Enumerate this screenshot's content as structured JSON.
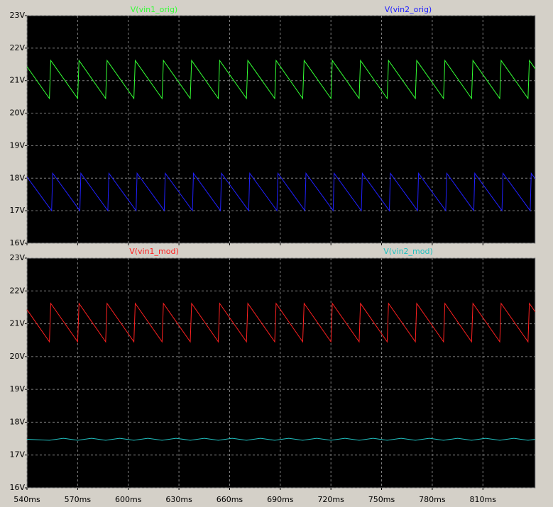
{
  "chart_data": [
    {
      "type": "line",
      "xlim": [
        540,
        841
      ],
      "ylim": [
        16,
        23
      ],
      "yticks": [
        {
          "value": 16,
          "label": "16V"
        },
        {
          "value": 17,
          "label": "17V"
        },
        {
          "value": 18,
          "label": "18V"
        },
        {
          "value": 19,
          "label": "19V"
        },
        {
          "value": 20,
          "label": "20V"
        },
        {
          "value": 21,
          "label": "21V"
        },
        {
          "value": 22,
          "label": "22V"
        },
        {
          "value": 23,
          "label": "23V"
        }
      ],
      "grid": true,
      "series": [
        {
          "name": "V(vin1_orig)",
          "color": "#33ff33",
          "x": [
            540,
            553.3,
            554.1,
            570.0,
            570.8,
            586.6,
            587.4,
            603.3,
            604.1,
            620.0,
            620.8,
            636.7,
            637.5,
            653.3,
            654.1,
            670.0,
            670.8,
            686.7,
            687.5,
            703.3,
            704.1,
            720.0,
            720.8,
            736.7,
            737.5,
            753.3,
            754.1,
            770.0,
            770.8,
            786.7,
            787.5,
            803.3,
            804.1,
            820.0,
            820.8,
            836.7,
            837.5,
            841
          ],
          "values": [
            21.43,
            20.45,
            21.62,
            20.45,
            21.62,
            20.45,
            21.62,
            20.45,
            21.62,
            20.45,
            21.62,
            20.45,
            21.62,
            20.45,
            21.62,
            20.45,
            21.62,
            20.45,
            21.62,
            20.45,
            21.62,
            20.45,
            21.62,
            20.45,
            21.62,
            20.45,
            21.62,
            20.45,
            21.62,
            20.45,
            21.62,
            20.45,
            21.62,
            20.45,
            21.62,
            20.45,
            21.62,
            21.36
          ]
        },
        {
          "name": "V(vin2_orig)",
          "color": "#2020ff",
          "x": [
            540,
            554.6,
            555.2,
            571.3,
            571.9,
            587.9,
            588.5,
            604.6,
            605.2,
            621.3,
            621.9,
            638.0,
            638.6,
            654.6,
            655.2,
            671.3,
            671.9,
            688.0,
            688.6,
            704.6,
            705.2,
            721.3,
            721.9,
            738.0,
            738.6,
            754.6,
            755.2,
            771.3,
            771.9,
            788.0,
            788.6,
            804.6,
            805.2,
            821.3,
            821.9,
            838.0,
            838.6,
            841
          ],
          "values": [
            18.04,
            17.0,
            18.15,
            17.0,
            18.15,
            17.0,
            18.15,
            17.0,
            18.15,
            17.0,
            18.15,
            17.0,
            18.15,
            17.0,
            18.15,
            17.0,
            18.15,
            17.0,
            18.15,
            17.0,
            18.15,
            17.0,
            18.15,
            17.0,
            18.15,
            17.0,
            18.15,
            17.0,
            18.15,
            17.0,
            18.15,
            17.0,
            18.15,
            17.0,
            18.15,
            17.0,
            18.15,
            17.98
          ]
        }
      ]
    },
    {
      "type": "line",
      "xlim": [
        540,
        841
      ],
      "ylim": [
        16,
        23
      ],
      "xticks": [
        {
          "value": 540,
          "label": "540ms"
        },
        {
          "value": 570,
          "label": "570ms"
        },
        {
          "value": 600,
          "label": "600ms"
        },
        {
          "value": 630,
          "label": "630ms"
        },
        {
          "value": 660,
          "label": "660ms"
        },
        {
          "value": 690,
          "label": "690ms"
        },
        {
          "value": 720,
          "label": "720ms"
        },
        {
          "value": 750,
          "label": "750ms"
        },
        {
          "value": 780,
          "label": "780ms"
        },
        {
          "value": 810,
          "label": "810ms"
        }
      ],
      "yticks": [
        {
          "value": 16,
          "label": "16V"
        },
        {
          "value": 17,
          "label": "17V"
        },
        {
          "value": 18,
          "label": "18V"
        },
        {
          "value": 19,
          "label": "19V"
        },
        {
          "value": 20,
          "label": "20V"
        },
        {
          "value": 21,
          "label": "21V"
        },
        {
          "value": 22,
          "label": "22V"
        },
        {
          "value": 23,
          "label": "23V"
        }
      ],
      "grid": true,
      "series": [
        {
          "name": "V(vin1_mod)",
          "color": "#ff2020",
          "x": [
            540,
            553.3,
            554.1,
            570.0,
            570.8,
            586.6,
            587.4,
            603.3,
            604.1,
            620.0,
            620.8,
            636.7,
            637.5,
            653.3,
            654.1,
            670.0,
            670.8,
            686.7,
            687.5,
            703.3,
            704.1,
            720.0,
            720.8,
            736.7,
            737.5,
            753.3,
            754.1,
            770.0,
            770.8,
            786.7,
            787.5,
            803.3,
            804.1,
            820.0,
            820.8,
            836.7,
            837.5,
            841
          ],
          "values": [
            21.43,
            20.45,
            21.62,
            20.45,
            21.62,
            20.45,
            21.62,
            20.45,
            21.62,
            20.45,
            21.62,
            20.45,
            21.62,
            20.45,
            21.62,
            20.45,
            21.62,
            20.45,
            21.62,
            20.45,
            21.62,
            20.45,
            21.62,
            20.45,
            21.62,
            20.45,
            21.62,
            20.45,
            21.62,
            20.45,
            21.62,
            20.45,
            21.62,
            20.45,
            21.62,
            20.45,
            21.62,
            21.36
          ]
        },
        {
          "name": "V(vin2_mod)",
          "color": "#20c0c0",
          "x": [
            540,
            553.3,
            561.6,
            570.0,
            578.3,
            586.6,
            594.9,
            603.3,
            611.6,
            620.0,
            628.3,
            636.7,
            645.0,
            653.3,
            661.6,
            670.0,
            678.3,
            686.7,
            695.0,
            703.3,
            711.6,
            720.0,
            728.3,
            736.7,
            745.0,
            753.3,
            761.6,
            770.0,
            778.3,
            786.7,
            795.0,
            803.3,
            811.6,
            820.0,
            828.3,
            836.7,
            841
          ],
          "values": [
            17.48,
            17.45,
            17.51,
            17.45,
            17.51,
            17.45,
            17.51,
            17.45,
            17.51,
            17.45,
            17.51,
            17.45,
            17.51,
            17.45,
            17.51,
            17.45,
            17.51,
            17.45,
            17.51,
            17.45,
            17.51,
            17.45,
            17.51,
            17.45,
            17.51,
            17.45,
            17.51,
            17.45,
            17.51,
            17.45,
            17.51,
            17.45,
            17.51,
            17.45,
            17.51,
            17.45,
            17.48
          ]
        }
      ]
    }
  ]
}
